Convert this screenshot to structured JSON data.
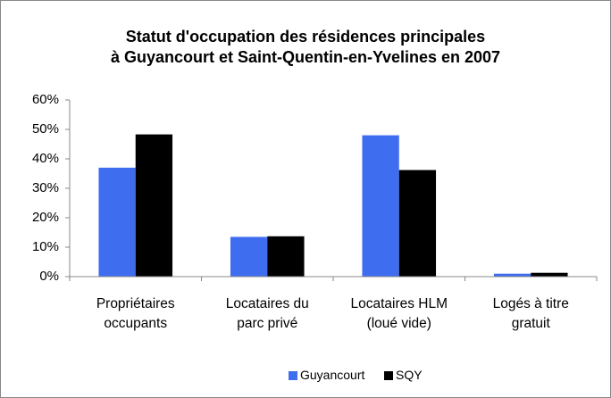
{
  "chart_data": {
    "type": "bar",
    "title": "Statut d'occupation des résidences principales\nà Guyancourt et Saint-Quentin-en-Yvelines en 2007",
    "categories": [
      "Propriétaires\noccupants",
      "Locataires du\nparc privé",
      "Locataires HLM\n(loué vide)",
      "Logés à titre\ngratuit"
    ],
    "series": [
      {
        "name": "Guyancourt",
        "color": "#3f6df0",
        "values": [
          37,
          13.5,
          48,
          1
        ]
      },
      {
        "name": "SQY",
        "color": "#000000",
        "values": [
          48.3,
          13.7,
          36.2,
          1.3
        ]
      }
    ],
    "ylim": [
      0,
      60
    ],
    "yticks": [
      {
        "value": 0,
        "label": "0%"
      },
      {
        "value": 10,
        "label": "10%"
      },
      {
        "value": 20,
        "label": "20%"
      },
      {
        "value": 30,
        "label": "30%"
      },
      {
        "value": 40,
        "label": "40%"
      },
      {
        "value": 50,
        "label": "50%"
      },
      {
        "value": 60,
        "label": "60%"
      }
    ],
    "grid": false,
    "legend": "bottom"
  }
}
